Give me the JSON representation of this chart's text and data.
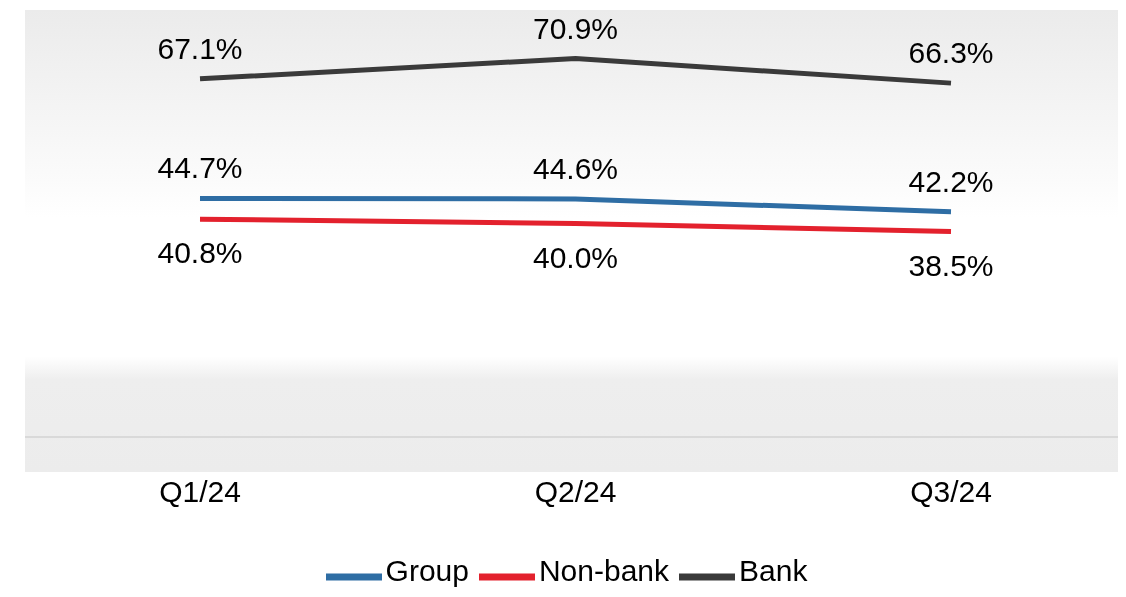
{
  "chart_data": {
    "type": "line",
    "categories": [
      "Q1/24",
      "Q2/24",
      "Q3/24"
    ],
    "series": [
      {
        "name": "Group",
        "color": "#2e6da4",
        "values": [
          44.7,
          44.6,
          42.2
        ],
        "value_labels": [
          "44.7%",
          "44.6%",
          "42.2%"
        ]
      },
      {
        "name": "Non-bank",
        "color": "#e3212d",
        "values": [
          40.8,
          40.0,
          38.5
        ],
        "value_labels": [
          "40.8%",
          "40.0%",
          "38.5%"
        ]
      },
      {
        "name": "Bank",
        "color": "#3a3a3a",
        "values": [
          67.1,
          70.9,
          66.3
        ],
        "value_labels": [
          "67.1%",
          "70.9%",
          "66.3%"
        ]
      }
    ],
    "legend": "bottom",
    "marker": "none",
    "line_style": "solid"
  }
}
